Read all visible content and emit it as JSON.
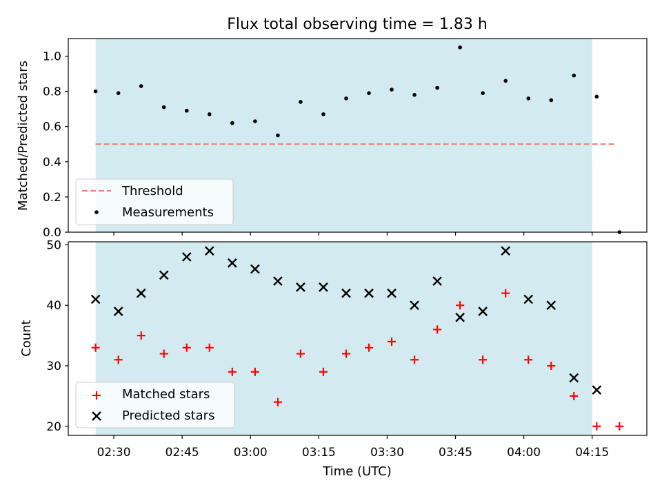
{
  "figure_title": "Flux total observing time = 1.83 h",
  "x_ticks": [
    "02:30",
    "02:45",
    "03:00",
    "03:15",
    "03:30",
    "03:45",
    "04:00",
    "04:15"
  ],
  "x_label": "Time (UTC)",
  "colors": {
    "band": "#d3eaf0",
    "threshold": "#f08080",
    "measurements": "#000000",
    "matched": "#ff0000",
    "predicted": "#000000"
  },
  "chart_data": [
    {
      "type": "scatter",
      "title": "Flux total observing time = 1.83 h",
      "xlabel": "",
      "ylabel": "Matched/Predicted stars",
      "xlim": [
        "02:20",
        "04:27"
      ],
      "ylim": [
        0,
        1.1
      ],
      "yticks": [
        "0.0",
        "0.2",
        "0.4",
        "0.6",
        "0.8",
        "1.0"
      ],
      "observing_window": [
        "02:26",
        "04:15"
      ],
      "legend": {
        "position": "lower-left",
        "entries": [
          "Threshold",
          "Measurements"
        ]
      },
      "threshold": {
        "name": "Threshold",
        "y": 0.5,
        "x_range": [
          "02:26",
          "04:20"
        ],
        "style": "dashed"
      },
      "series": [
        {
          "name": "Measurements",
          "marker": "dot",
          "x": [
            "02:26",
            "02:31",
            "02:36",
            "02:41",
            "02:46",
            "02:51",
            "02:56",
            "03:01",
            "03:06",
            "03:11",
            "03:16",
            "03:21",
            "03:26",
            "03:31",
            "03:36",
            "03:41",
            "03:46",
            "03:51",
            "03:56",
            "04:01",
            "04:06",
            "04:11",
            "04:16",
            "04:21"
          ],
          "values": [
            0.8,
            0.79,
            0.83,
            0.71,
            0.69,
            0.67,
            0.62,
            0.63,
            0.55,
            0.74,
            0.67,
            0.76,
            0.79,
            0.81,
            0.78,
            0.82,
            1.05,
            0.79,
            0.86,
            0.76,
            0.75,
            0.89,
            0.77,
            0.0
          ]
        }
      ]
    },
    {
      "type": "scatter",
      "title": "",
      "xlabel": "Time (UTC)",
      "ylabel": "Count",
      "xlim": [
        "02:20",
        "04:27"
      ],
      "ylim": [
        18.5,
        50.5
      ],
      "yticks": [
        "20",
        "30",
        "40",
        "50"
      ],
      "observing_window": [
        "02:26",
        "04:15"
      ],
      "legend": {
        "position": "lower-left",
        "entries": [
          "Matched stars",
          "Predicted stars"
        ]
      },
      "series": [
        {
          "name": "Matched stars",
          "marker": "plus",
          "x": [
            "02:26",
            "02:31",
            "02:36",
            "02:41",
            "02:46",
            "02:51",
            "02:56",
            "03:01",
            "03:06",
            "03:11",
            "03:16",
            "03:21",
            "03:26",
            "03:31",
            "03:36",
            "03:41",
            "03:46",
            "03:51",
            "03:56",
            "04:01",
            "04:06",
            "04:11",
            "04:16",
            "04:21"
          ],
          "values": [
            33,
            31,
            35,
            32,
            33,
            33,
            29,
            29,
            24,
            32,
            29,
            32,
            33,
            34,
            31,
            36,
            40,
            31,
            42,
            31,
            30,
            25,
            20,
            20
          ]
        },
        {
          "name": "Predicted stars",
          "marker": "x",
          "x": [
            "02:26",
            "02:31",
            "02:36",
            "02:41",
            "02:46",
            "02:51",
            "02:56",
            "03:01",
            "03:06",
            "03:11",
            "03:16",
            "03:21",
            "03:26",
            "03:31",
            "03:36",
            "03:41",
            "03:46",
            "03:51",
            "03:56",
            "04:01",
            "04:06",
            "04:11",
            "04:16"
          ],
          "values": [
            41,
            39,
            42,
            45,
            48,
            49,
            47,
            46,
            44,
            43,
            43,
            42,
            42,
            42,
            40,
            44,
            38,
            39,
            49,
            41,
            40,
            28,
            26
          ]
        }
      ]
    }
  ]
}
